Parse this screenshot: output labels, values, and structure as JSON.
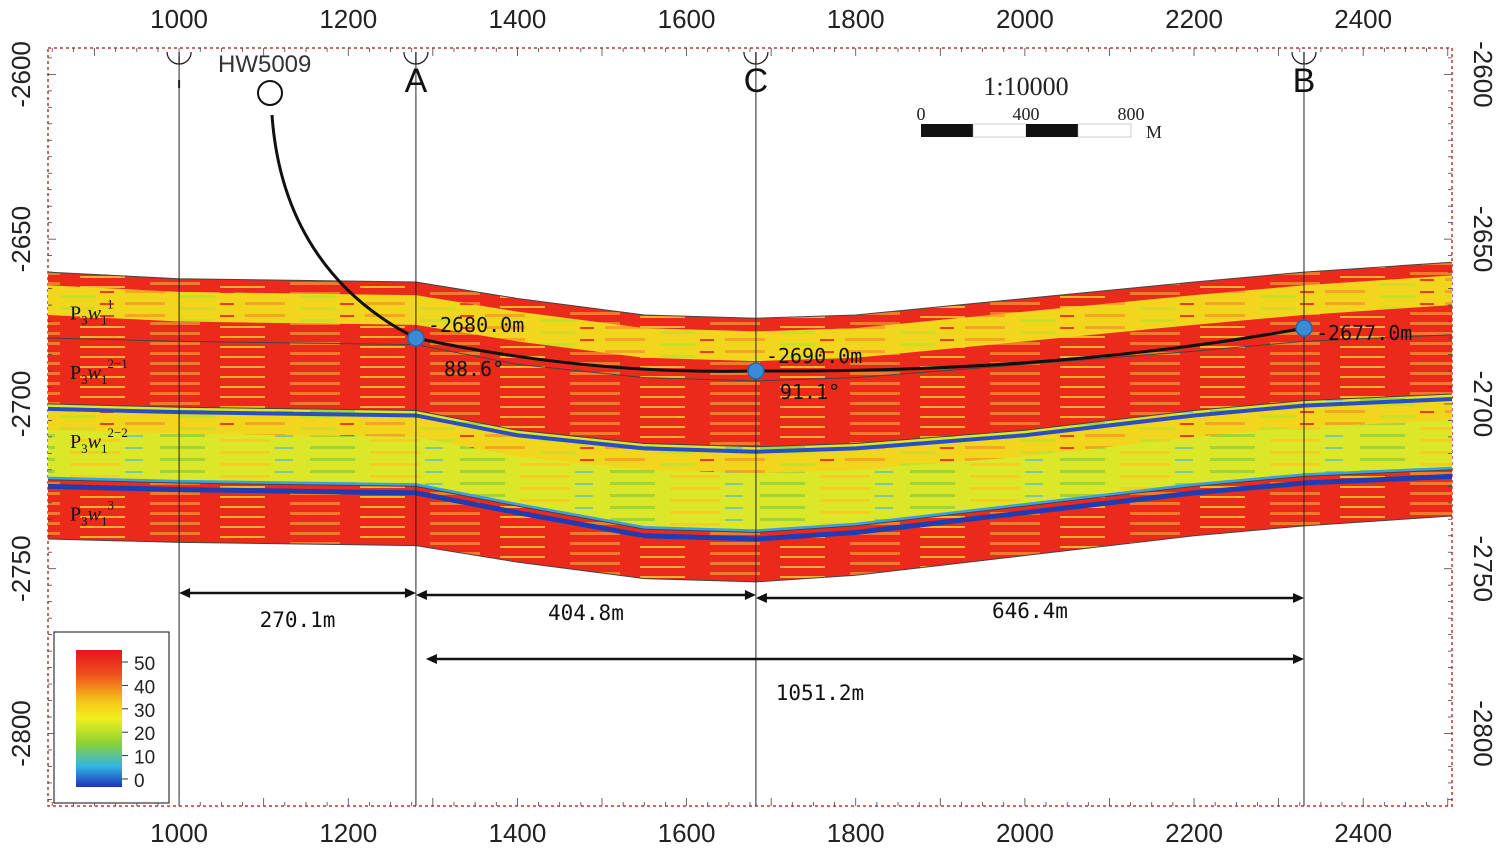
{
  "x_axis": {
    "ticks": [
      "1000",
      "1200",
      "1400",
      "1600",
      "1800",
      "2000",
      "2200",
      "2400"
    ],
    "range": [
      845,
      2505
    ]
  },
  "y_axis": {
    "ticks": [
      "-2600",
      "-2650",
      "-2700",
      "-2750",
      "-2800"
    ],
    "range": [
      -2592,
      -2822
    ]
  },
  "well": {
    "name": "HW5009"
  },
  "wells": [
    {
      "label": "",
      "x": 1000
    },
    {
      "label": "A",
      "x": 1280
    },
    {
      "label": "C",
      "x": 1682
    },
    {
      "label": "B",
      "x": 2330
    }
  ],
  "points": [
    {
      "depth_label": "-2680.0m",
      "angle_label": "88.6°",
      "x": 1280,
      "y": -2680
    },
    {
      "depth_label": "-2690.0m",
      "angle_label": "91.1°",
      "x": 1682,
      "y": -2690
    },
    {
      "depth_label": "-2677.0m",
      "angle_label": "",
      "x": 2330,
      "y": -2677
    }
  ],
  "layers": [
    {
      "label": "P",
      "sub": "3",
      "w": "w",
      "wsub": "1",
      "sup": "1"
    },
    {
      "label": "P",
      "sub": "3",
      "w": "w",
      "wsub": "1",
      "sup": "2−1"
    },
    {
      "label": "P",
      "sub": "3",
      "w": "w",
      "wsub": "1",
      "sup": "2−2"
    },
    {
      "label": "P",
      "sub": "3",
      "w": "w",
      "wsub": "1",
      "sup": "3"
    }
  ],
  "scale": {
    "ratio": "1:10000",
    "labels": [
      "0",
      "400",
      "800"
    ],
    "unit": "M"
  },
  "distances": [
    {
      "label": "270.1m"
    },
    {
      "label": "404.8m"
    },
    {
      "label": "646.4m"
    },
    {
      "label": "1051.2m"
    }
  ],
  "legend": {
    "ticks": [
      "50",
      "40",
      "30",
      "20",
      "10",
      "0"
    ],
    "colors": [
      "#e6141e",
      "#f0501e",
      "#f5c819",
      "#f0f01e",
      "#8cd232",
      "#32b4e6",
      "#1e32b4"
    ]
  }
}
